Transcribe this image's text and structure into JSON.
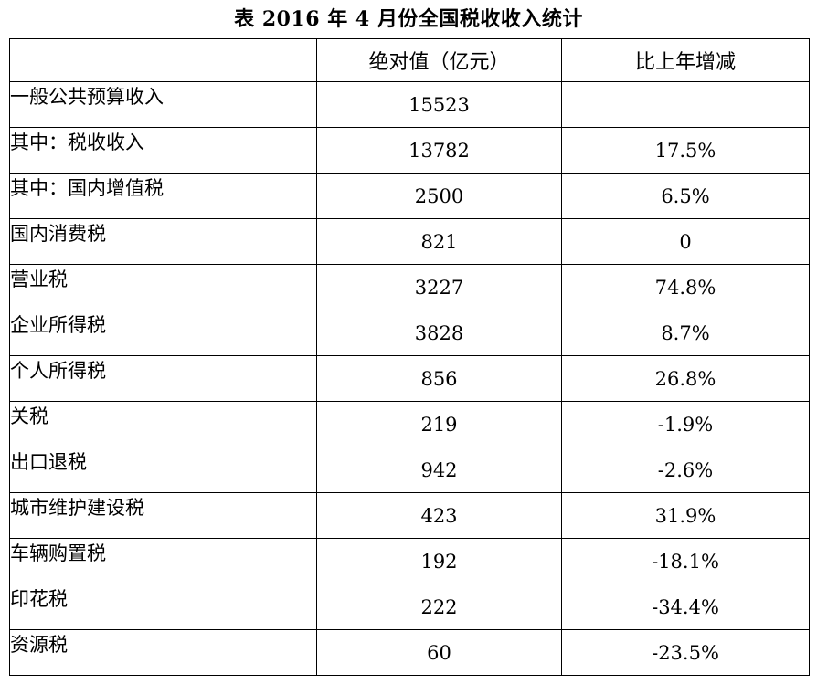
{
  "caption": "表 2016 年 4 月份全国税收收入统计",
  "header": {
    "name": "",
    "absolute": "绝对值（亿元）",
    "change": "比上年增减"
  },
  "rows": [
    {
      "name": "一般公共预算收入",
      "value": "15523",
      "change": ""
    },
    {
      "name": "其中：税收收入",
      "value": "13782",
      "change": "17.5%"
    },
    {
      "name": "其中：国内增值税",
      "value": "2500",
      "change": "6.5%"
    },
    {
      "name": "国内消费税",
      "value": "821",
      "change": "0"
    },
    {
      "name": "营业税",
      "value": "3227",
      "change": "74.8%"
    },
    {
      "name": "企业所得税",
      "value": "3828",
      "change": "8.7%"
    },
    {
      "name": "个人所得税",
      "value": "856",
      "change": "26.8%"
    },
    {
      "name": "关税",
      "value": "219",
      "change": "-1.9%"
    },
    {
      "name": "出口退税",
      "value": "942",
      "change": "-2.6%"
    },
    {
      "name": "城市维护建设税",
      "value": "423",
      "change": "31.9%"
    },
    {
      "name": "车辆购置税",
      "value": "192",
      "change": "-18.1%"
    },
    {
      "name": "印花税",
      "value": "222",
      "change": "-34.4%"
    },
    {
      "name": "资源税",
      "value": "60",
      "change": "-23.5%"
    }
  ]
}
